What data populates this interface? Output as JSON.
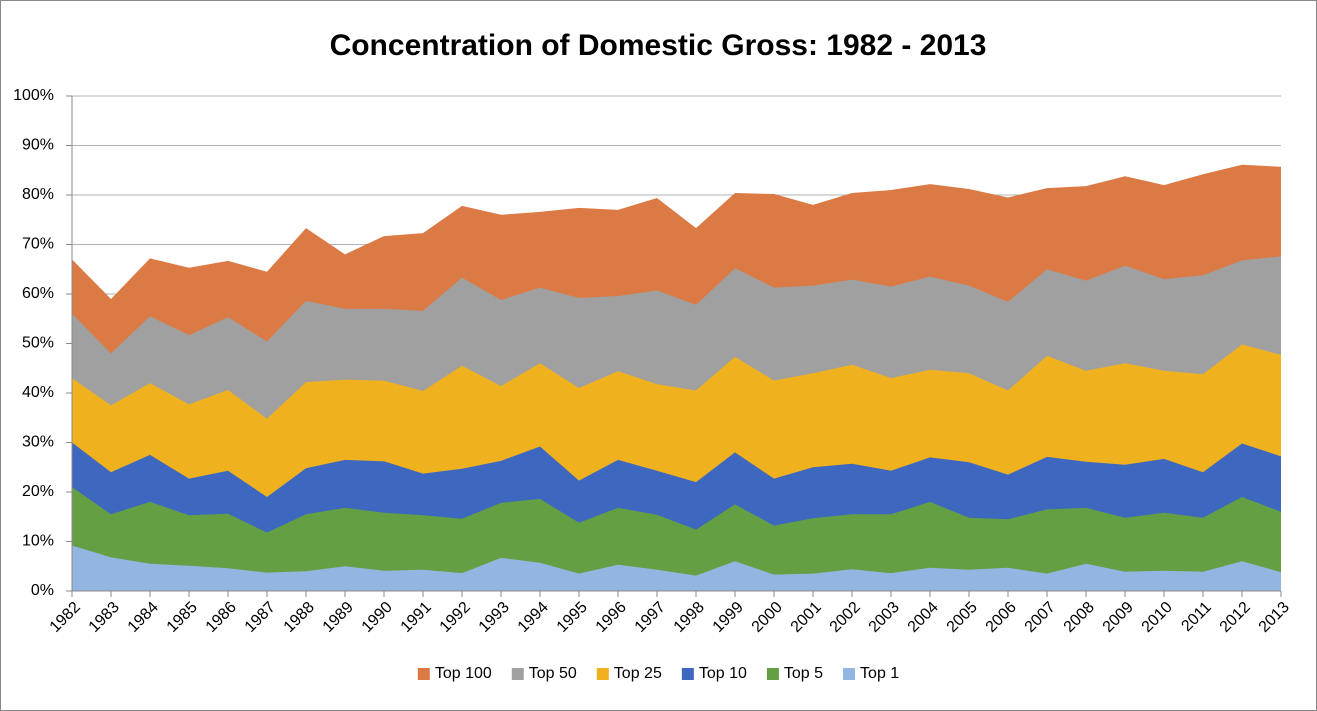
{
  "chart_data": {
    "type": "area",
    "title": "Concentration of Domestic Gross: 1982 - 2013",
    "categories": [
      "1982",
      "1983",
      "1984",
      "1985",
      "1986",
      "1987",
      "1988",
      "1989",
      "1990",
      "1991",
      "1992",
      "1993",
      "1994",
      "1995",
      "1996",
      "1997",
      "1998",
      "1999",
      "2000",
      "2001",
      "2002",
      "2003",
      "2004",
      "2005",
      "2006",
      "2007",
      "2008",
      "2009",
      "2010",
      "2011",
      "2012",
      "2013"
    ],
    "series": [
      {
        "name": "Top 100",
        "color": "#dc7a45",
        "values": [
          67,
          59,
          67.2,
          65.3,
          66.7,
          64.5,
          73.3,
          68,
          71.7,
          72.3,
          77.8,
          76,
          76.6,
          77.4,
          77,
          79.4,
          73.3,
          80.4,
          80.2,
          78,
          80.4,
          81,
          82.2,
          81.2,
          79.5,
          81.4,
          81.8,
          83.8,
          82,
          84.2,
          86.1,
          85.7
        ]
      },
      {
        "name": "Top 50",
        "color": "#a0a0a0",
        "values": [
          56,
          48,
          55.5,
          51.7,
          55.3,
          50.4,
          58.6,
          57,
          57,
          56.6,
          63.3,
          58.8,
          61.3,
          59.2,
          59.6,
          60.7,
          57.8,
          65.2,
          61.3,
          61.7,
          62.9,
          61.5,
          63.5,
          61.7,
          58.4,
          65,
          62.7,
          65.7,
          63,
          63.8,
          66.8,
          67.6
        ]
      },
      {
        "name": "Top 25",
        "color": "#efb21e",
        "values": [
          43,
          37.5,
          42,
          37.7,
          40.6,
          34.8,
          42.2,
          42.7,
          42.5,
          40.4,
          45.5,
          41.4,
          46,
          41,
          44.4,
          41.8,
          40.5,
          47.3,
          42.5,
          44,
          45.7,
          43,
          44.7,
          44,
          40.5,
          47.5,
          44.5,
          46,
          44.5,
          43.8,
          49.8,
          47.7
        ]
      },
      {
        "name": "Top 10",
        "color": "#3e68bf",
        "values": [
          30,
          24,
          27.5,
          22.7,
          24.3,
          19,
          24.8,
          26.5,
          26.2,
          23.7,
          24.7,
          26.3,
          29.2,
          22.3,
          26.5,
          24.3,
          22,
          28,
          22.7,
          25,
          25.7,
          24.3,
          27,
          26,
          23.5,
          27.1,
          26.1,
          25.5,
          26.7,
          24,
          29.8,
          27.2
        ]
      },
      {
        "name": "Top 5",
        "color": "#64a043",
        "values": [
          21,
          15.5,
          18,
          15.3,
          15.6,
          11.8,
          15.5,
          16.8,
          15.8,
          15.3,
          14.6,
          17.8,
          18.6,
          13.8,
          16.8,
          15.4,
          12.4,
          17.5,
          13.2,
          14.7,
          15.5,
          15.5,
          18,
          14.8,
          14.5,
          16.5,
          16.8,
          14.8,
          15.8,
          14.8,
          19,
          16
        ]
      },
      {
        "name": "Top 1",
        "color": "#93b5e1",
        "values": [
          9.2,
          6.8,
          5.5,
          5.1,
          4.6,
          3.7,
          4,
          5,
          4.1,
          4.3,
          3.6,
          6.7,
          5.7,
          3.5,
          5.3,
          4.3,
          3.1,
          6,
          3.3,
          3.5,
          4.4,
          3.6,
          4.7,
          4.3,
          4.7,
          3.5,
          5.5,
          3.9,
          4.1,
          3.9,
          6,
          3.8
        ]
      }
    ],
    "ylim": [
      0,
      100
    ],
    "yticks": [
      {
        "value": 0,
        "label": "0%"
      },
      {
        "value": 10,
        "label": "10%"
      },
      {
        "value": 20,
        "label": "20%"
      },
      {
        "value": 30,
        "label": "30%"
      },
      {
        "value": 40,
        "label": "40%"
      },
      {
        "value": 50,
        "label": "50%"
      },
      {
        "value": 60,
        "label": "60%"
      },
      {
        "value": 70,
        "label": "70%"
      },
      {
        "value": 80,
        "label": "80%"
      },
      {
        "value": 90,
        "label": "90%"
      },
      {
        "value": 100,
        "label": "100%"
      }
    ],
    "grid": true,
    "legend": "bottom"
  }
}
